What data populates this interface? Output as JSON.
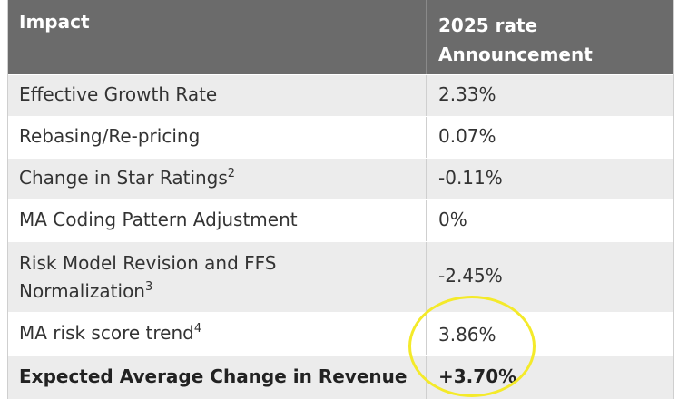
{
  "table": {
    "headers": {
      "impact": "Impact",
      "announcement_line1": "2025 rate",
      "announcement_line2": "Announcement"
    },
    "rows": [
      {
        "label": "Effective Growth Rate",
        "sup": "",
        "value": "2.33%"
      },
      {
        "label": "Rebasing/Re-pricing",
        "sup": "",
        "value": "0.07%"
      },
      {
        "label": "Change in Star Ratings",
        "sup": "2",
        "value": "-0.11%"
      },
      {
        "label": "MA Coding Pattern Adjustment",
        "sup": "",
        "value": "0%"
      },
      {
        "label_line1": "Risk Model Revision and FFS",
        "label_line2": "Normalization",
        "sup": "3",
        "value": "-2.45%"
      },
      {
        "label": "MA risk score trend",
        "sup": "4",
        "value": "3.86%"
      },
      {
        "label": "Expected Average Change in Revenue",
        "sup": "",
        "value": "+3.70%"
      }
    ]
  },
  "highlight": {
    "color": "#f4ea2a"
  }
}
